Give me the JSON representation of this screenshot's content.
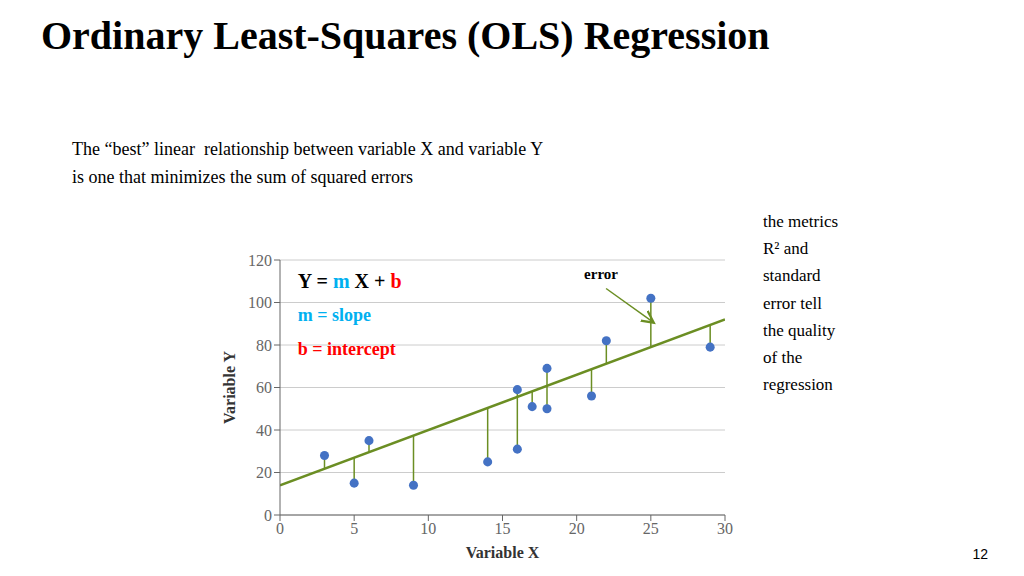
{
  "chart_data": {
    "type": "scatter",
    "title": "Ordinary Least-Squares (OLS) Regression",
    "subtitle": [
      "The “best” linear  relationship between variable X and variable Y",
      "is one that minimizes the sum of squared errors"
    ],
    "side_note": "the metrics\nR² and\nstandard\nerror tell\nthe quality\nof the\nregression",
    "page_number": "12",
    "x_label": "Variable X",
    "y_label": "Variable Y",
    "x": [
      3,
      5,
      6,
      9,
      14,
      16,
      16,
      17,
      18,
      18,
      21,
      22,
      25,
      29
    ],
    "values": [
      28,
      15,
      35,
      14,
      25,
      59,
      31,
      51,
      50,
      69,
      56,
      82,
      102,
      79
    ],
    "color": "#4472C4",
    "fitted_values": [
      21.8,
      27,
      29.6,
      37.4,
      50.4,
      55.6,
      55.6,
      58.2,
      60.8,
      60.8,
      68.6,
      71.2,
      79,
      89.4
    ],
    "error_color": "#6B8E23",
    "regression": {
      "x": [
        0,
        30
      ],
      "values": [
        14,
        92
      ],
      "color": "#6B8E23"
    },
    "xlim": [
      0,
      30
    ],
    "ylim": [
      0,
      120
    ],
    "xticks": [
      0,
      5,
      10,
      15,
      20,
      25,
      30
    ],
    "yticks": [
      0,
      20,
      40,
      60,
      80,
      100,
      120
    ],
    "grid": true,
    "annotations": [
      {
        "parts": [
          {
            "text": "Y = "
          },
          {
            "text": "m",
            "color": "#00B0F0"
          },
          {
            "text": " X + "
          },
          {
            "text": "b",
            "color": "#ff0000"
          }
        ]
      },
      {
        "text": "m = slope",
        "color": "#00B0F0"
      },
      {
        "text": "b = intercept",
        "color": "#ff0000"
      },
      {
        "text": "error"
      }
    ]
  }
}
